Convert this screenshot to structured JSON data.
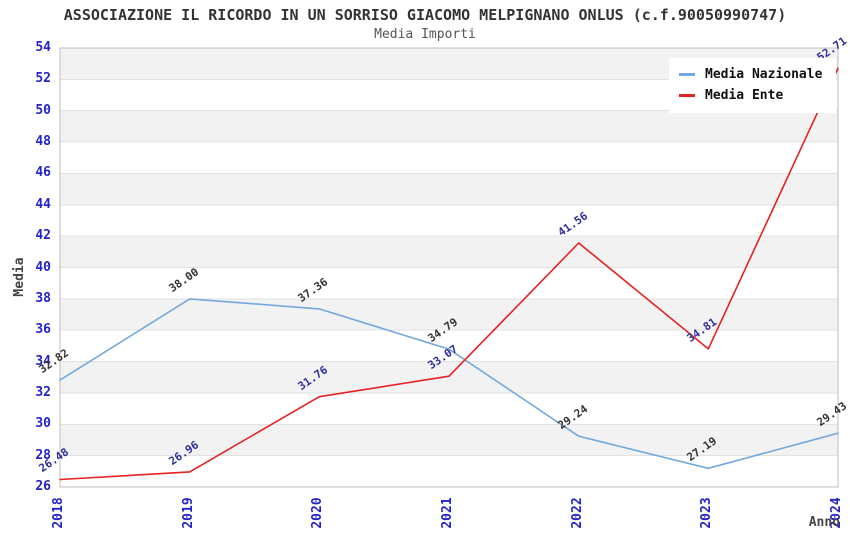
{
  "chart_data": {
    "type": "line",
    "title": "ASSOCIAZIONE IL RICORDO IN UN SORRISO GIACOMO MELPIGNANO ONLUS (c.f.90050990747)",
    "subtitle": "Media Importi",
    "xlabel": "Anno",
    "ylabel": "Media",
    "categories": [
      "2018",
      "2019",
      "2020",
      "2021",
      "2022",
      "2023",
      "2024"
    ],
    "series": [
      {
        "name": "Media Nazionale",
        "color": "#74a9dd",
        "label_color": "#333333",
        "values": [
          32.82,
          38.0,
          37.36,
          34.79,
          29.24,
          27.19,
          29.43
        ]
      },
      {
        "name": "Media Ente",
        "color": "#e62222",
        "label_color": "#2f2f99",
        "values": [
          26.48,
          26.96,
          31.76,
          33.07,
          41.56,
          34.81,
          52.71
        ]
      }
    ],
    "ylim": [
      26,
      54
    ],
    "ytick_step": 2,
    "grid": true,
    "legend_position": "top-right",
    "tick_label_color": "#2323cb",
    "plot_band_colors": [
      "#ffffff",
      "#f2f2f2"
    ],
    "gridline_color": "#e2e2e2",
    "plot_border_color": "#bfbfbf",
    "value_label_decimals": 2
  }
}
